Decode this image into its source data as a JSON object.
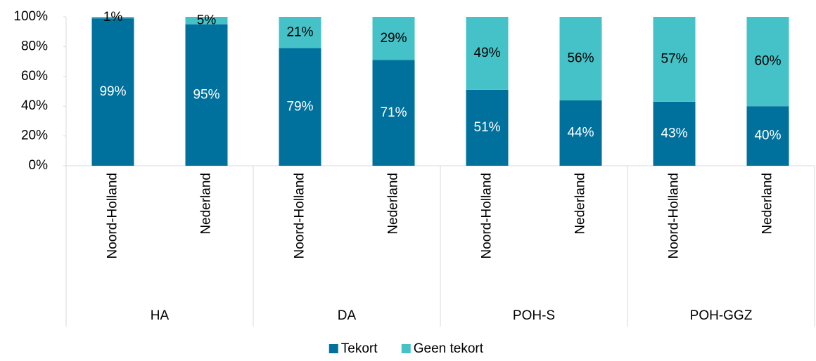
{
  "chart_data": {
    "type": "stacked-bar",
    "categories": [
      "Noord-Holland",
      "Nederland",
      "Noord-Holland",
      "Nederland",
      "Noord-Holland",
      "Nederland",
      "Noord-Holland",
      "Nederland"
    ],
    "groups": [
      "HA",
      "DA",
      "POH-S",
      "POH-GGZ"
    ],
    "series": [
      {
        "name": "Tekort",
        "color": "#00719c",
        "values": [
          99,
          95,
          79,
          71,
          51,
          44,
          43,
          40
        ],
        "value_labels": [
          "99%",
          "95%",
          "79%",
          "71%",
          "51%",
          "44%",
          "43%",
          "40%"
        ]
      },
      {
        "name": "Geen tekort",
        "color": "#45c2c7",
        "values": [
          1,
          5,
          21,
          29,
          49,
          56,
          57,
          60
        ],
        "value_labels": [
          "1%",
          "5%",
          "21%",
          "29%",
          "49%",
          "56%",
          "57%",
          "60%"
        ]
      }
    ],
    "ylim": [
      0,
      100
    ],
    "yticks": [
      {
        "value": 0,
        "label": "0%"
      },
      {
        "value": 20,
        "label": "20%"
      },
      {
        "value": 40,
        "label": "40%"
      },
      {
        "value": 60,
        "label": "60%"
      },
      {
        "value": 80,
        "label": "80%"
      },
      {
        "value": 100,
        "label": "100%"
      }
    ],
    "legend": "bottom"
  }
}
